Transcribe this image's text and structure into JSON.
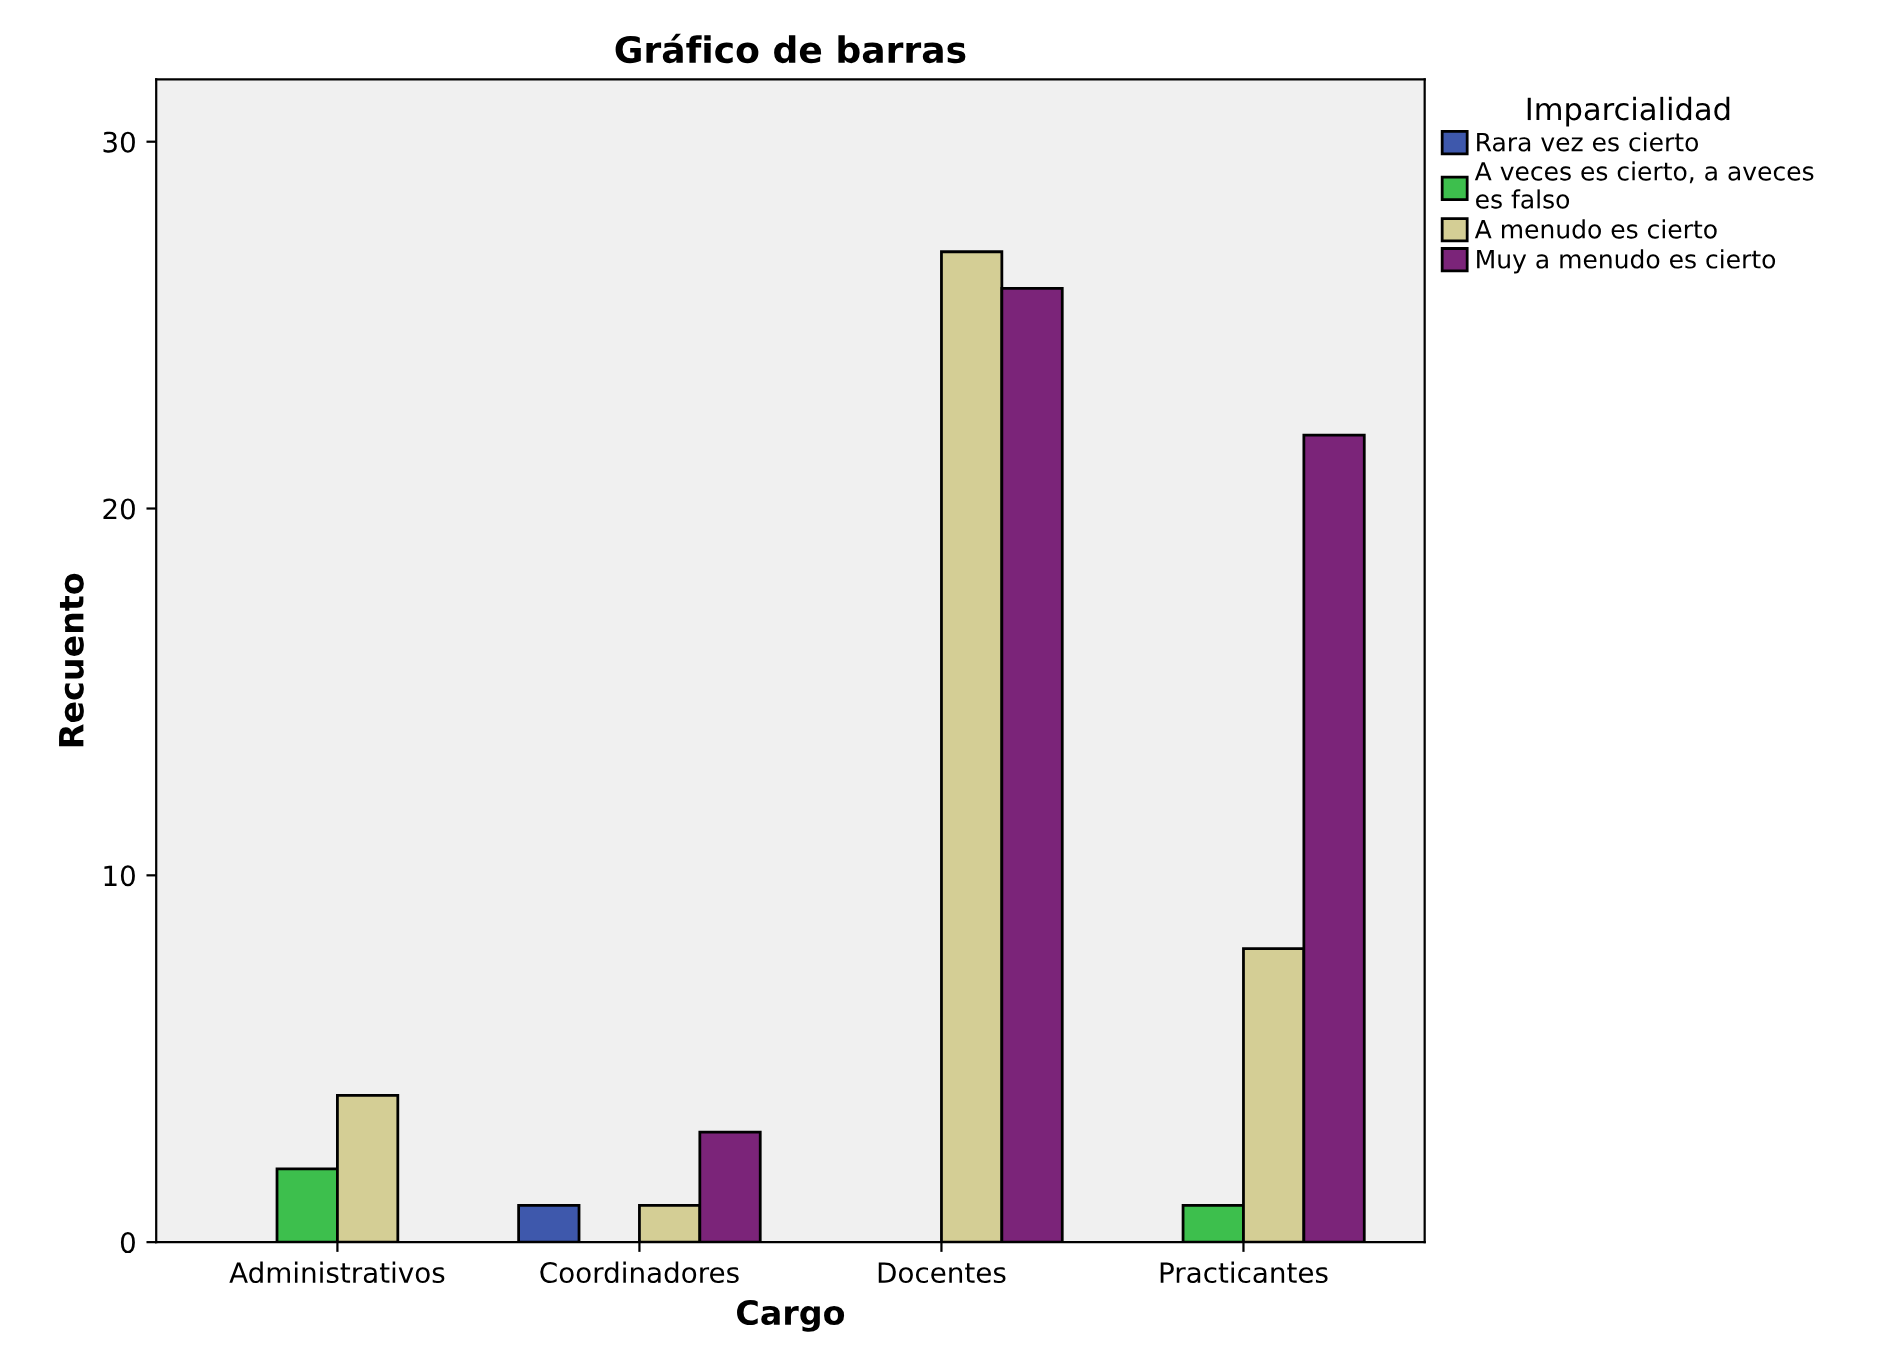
{
  "chart_data": {
    "type": "bar",
    "title": "Gráfico de barras",
    "xlabel": "Cargo",
    "ylabel": "Recuento",
    "legend_title": "Imparcialidad",
    "categories": [
      "Administrativos",
      "Coordinadores",
      "Docentes",
      "Practicantes"
    ],
    "series": [
      {
        "name": "Rara vez es cierto",
        "color": "#3e58ac",
        "values": [
          null,
          1,
          null,
          null
        ]
      },
      {
        "name": "A veces es cierto, a aveces es falso",
        "color": "#3dbf4d",
        "values": [
          2,
          null,
          null,
          1
        ]
      },
      {
        "name": "A menudo es cierto",
        "color": "#d4ce95",
        "values": [
          4,
          1,
          27,
          8
        ]
      },
      {
        "name": "Muy a menudo es cierto",
        "color": "#7b2479",
        "values": [
          null,
          3,
          26,
          22
        ]
      }
    ],
    "ylim": [
      0,
      31.7
    ],
    "yticks": [
      0,
      10,
      20,
      30
    ],
    "grid": false,
    "legend": "right"
  }
}
